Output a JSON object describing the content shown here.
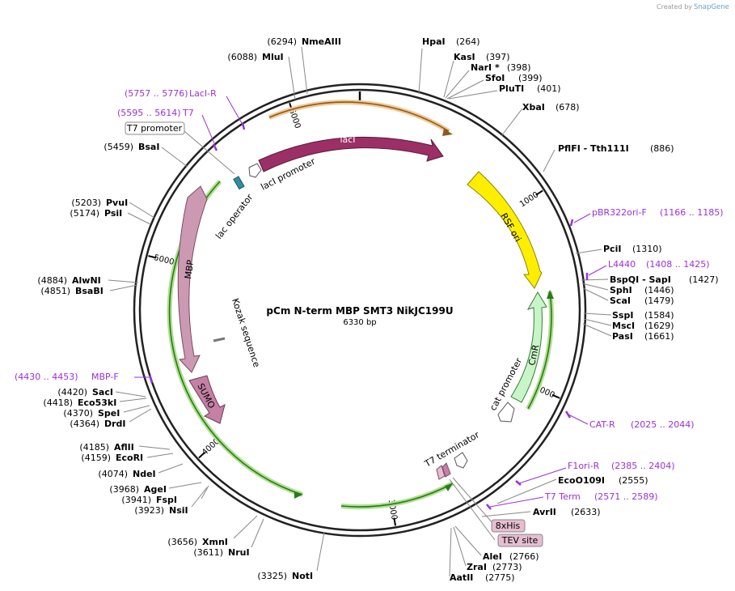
{
  "app": {
    "watermark": "Created by SnapGene",
    "watermark_prefix": "Created by",
    "brand": "SnapGene"
  },
  "plasmid": {
    "name": "pCm N-term MBP SMT3 NikJC199U",
    "size_label": "6330 bp",
    "length_bp": 6330
  },
  "colors": {
    "backbone": "#222222",
    "lacI": "#9c2f66",
    "RSF_ori": "#ffee00",
    "CmR": "#c8f5c8",
    "MBP": "#cc99b3",
    "SUMO": "#c480a5",
    "lac_operator": "#2f8f9f",
    "primer": "#9b30d9",
    "orf_green": "#2a7a1a",
    "orf_glow": "#b0e090",
    "lacI_glow": "#f3c890",
    "tag_fill": "#e6bdd1"
  },
  "position_ticks": [
    {
      "bp": 1000,
      "label": "1000"
    },
    {
      "bp": 2000,
      "label": "2000"
    },
    {
      "bp": 3000,
      "label": "3000"
    },
    {
      "bp": 4000,
      "label": "4000"
    },
    {
      "bp": 5000,
      "label": "5000"
    },
    {
      "bp": 6000,
      "label": "6000"
    }
  ],
  "restriction_sites": [
    {
      "id": "hpai",
      "name": "HpaI",
      "pos": "(264)",
      "bp": 264,
      "side": "right"
    },
    {
      "id": "kasi",
      "name": "KasI",
      "pos": "(397)",
      "bp": 397,
      "side": "right"
    },
    {
      "id": "nari",
      "name": "NarI *",
      "pos": "(398)",
      "bp": 398,
      "side": "right"
    },
    {
      "id": "sfoi",
      "name": "SfoI",
      "pos": "(399)",
      "bp": 399,
      "side": "right"
    },
    {
      "id": "pluti",
      "name": "PluTI",
      "pos": "(401)",
      "bp": 401,
      "side": "right"
    },
    {
      "id": "xbai",
      "name": "XbaI",
      "pos": "(678)",
      "bp": 678,
      "side": "right"
    },
    {
      "id": "pflfi",
      "name": "PflFI  - Tth111I",
      "pos": "(886)",
      "bp": 886,
      "side": "right"
    },
    {
      "id": "pcii",
      "name": "PciI",
      "pos": "(1310)",
      "bp": 1310,
      "side": "right"
    },
    {
      "id": "bspqi",
      "name": "BspQI  - SapI",
      "pos": "(1427)",
      "bp": 1427,
      "side": "right"
    },
    {
      "id": "sphi",
      "name": "SphI",
      "pos": "(1446)",
      "bp": 1446,
      "side": "right"
    },
    {
      "id": "scai",
      "name": "ScaI",
      "pos": "(1479)",
      "bp": 1479,
      "side": "right"
    },
    {
      "id": "sspi",
      "name": "SspI",
      "pos": "(1584)",
      "bp": 1584,
      "side": "right"
    },
    {
      "id": "msci",
      "name": "MscI",
      "pos": "(1629)",
      "bp": 1629,
      "side": "right"
    },
    {
      "id": "pasi",
      "name": "PasI",
      "pos": "(1661)",
      "bp": 1661,
      "side": "right"
    },
    {
      "id": "eco0109i",
      "name": "EcoO109I",
      "pos": "(2555)",
      "bp": 2555,
      "side": "right"
    },
    {
      "id": "avrii",
      "name": "AvrII",
      "pos": "(2633)",
      "bp": 2633,
      "side": "right"
    },
    {
      "id": "alei",
      "name": "AleI",
      "pos": "(2766)",
      "bp": 2766,
      "side": "right"
    },
    {
      "id": "zrai",
      "name": "ZraI",
      "pos": "(2773)",
      "bp": 2773,
      "side": "right"
    },
    {
      "id": "aatii",
      "name": "AatII",
      "pos": "(2775)",
      "bp": 2775,
      "side": "right"
    },
    {
      "id": "noti",
      "name": "NotI",
      "pos": "(3325)",
      "bp": 3325,
      "side": "left"
    },
    {
      "id": "nrui",
      "name": "NruI",
      "pos": "(3611)",
      "bp": 3611,
      "side": "left"
    },
    {
      "id": "xmni",
      "name": "XmnI",
      "pos": "(3656)",
      "bp": 3656,
      "side": "left"
    },
    {
      "id": "nsii",
      "name": "NsiI",
      "pos": "(3923)",
      "bp": 3923,
      "side": "left"
    },
    {
      "id": "fspi",
      "name": "FspI",
      "pos": "(3941)",
      "bp": 3941,
      "side": "left"
    },
    {
      "id": "agei",
      "name": "AgeI",
      "pos": "(3968)",
      "bp": 3968,
      "side": "left"
    },
    {
      "id": "ndei",
      "name": "NdeI",
      "pos": "(4074)",
      "bp": 4074,
      "side": "left"
    },
    {
      "id": "ecori",
      "name": "EcoRI",
      "pos": "(4159)",
      "bp": 4159,
      "side": "left"
    },
    {
      "id": "aflii",
      "name": "AflII",
      "pos": "(4185)",
      "bp": 4185,
      "side": "left"
    },
    {
      "id": "drdi",
      "name": "DrdI",
      "pos": "(4364)",
      "bp": 4364,
      "side": "left"
    },
    {
      "id": "spei",
      "name": "SpeI",
      "pos": "(4370)",
      "bp": 4370,
      "side": "left"
    },
    {
      "id": "eco53ki",
      "name": "Eco53kI",
      "pos": "(4418)",
      "bp": 4418,
      "side": "left"
    },
    {
      "id": "saci",
      "name": "SacI",
      "pos": "(4420)",
      "bp": 4420,
      "side": "left"
    },
    {
      "id": "bsabi",
      "name": "BsaBI",
      "pos": "(4851)",
      "bp": 4851,
      "side": "left"
    },
    {
      "id": "alwni",
      "name": "AlwNI",
      "pos": "(4884)",
      "bp": 4884,
      "side": "left"
    },
    {
      "id": "psii",
      "name": "PsiI",
      "pos": "(5174)",
      "bp": 5174,
      "side": "left"
    },
    {
      "id": "pvui",
      "name": "PvuI",
      "pos": "(5203)",
      "bp": 5203,
      "side": "left"
    },
    {
      "id": "bsai",
      "name": "BsaI",
      "pos": "(5459)",
      "bp": 5459,
      "side": "left"
    },
    {
      "id": "mlui",
      "name": "MluI",
      "pos": "(6088)",
      "bp": 6088,
      "side": "left"
    },
    {
      "id": "nmeaiii",
      "name": "NmeAIII",
      "pos": "(6294)",
      "bp": 6294,
      "side": "left"
    }
  ],
  "primers": [
    {
      "id": "pbr322ori-f",
      "name": "pBR322ori-F",
      "range": "(1166 .. 1185)",
      "side": "right"
    },
    {
      "id": "l4440",
      "name": "L4440",
      "range": "(1408 .. 1425)",
      "side": "right"
    },
    {
      "id": "cat-r",
      "name": "CAT-R",
      "range": "(2025 .. 2044)",
      "side": "right"
    },
    {
      "id": "f1ori-r",
      "name": "F1ori-R",
      "range": "(2385 .. 2404)",
      "side": "right"
    },
    {
      "id": "t7-term",
      "name": "T7 Term",
      "range": "(2571 .. 2589)",
      "side": "right"
    },
    {
      "id": "mbp-f",
      "name": "MBP-F",
      "range": "(4430 .. 4453)",
      "side": "left"
    },
    {
      "id": "t7",
      "name": "T7",
      "range": "(5595 .. 5614)",
      "side": "left"
    },
    {
      "id": "laci-r",
      "name": "LacI-R",
      "range": "(5757 .. 5776)",
      "side": "left"
    }
  ],
  "boxed_features": [
    {
      "id": "t7-promoter",
      "label": "T7 promoter"
    },
    {
      "id": "8xhis",
      "label": "8xHis"
    },
    {
      "id": "tev-site",
      "label": "TEV site"
    }
  ],
  "features": {
    "lacI": "lacI",
    "lacI_promoter": "lacI promoter",
    "lac_operator": "lac operator",
    "MBP": "MBP",
    "SUMO": "SUMO",
    "RSF_ori": "RSF ori",
    "CmR": "CmR",
    "cat_promoter": "cat promoter",
    "T7_terminator": "T7 terminator",
    "kozak": "Kozak sequence"
  }
}
